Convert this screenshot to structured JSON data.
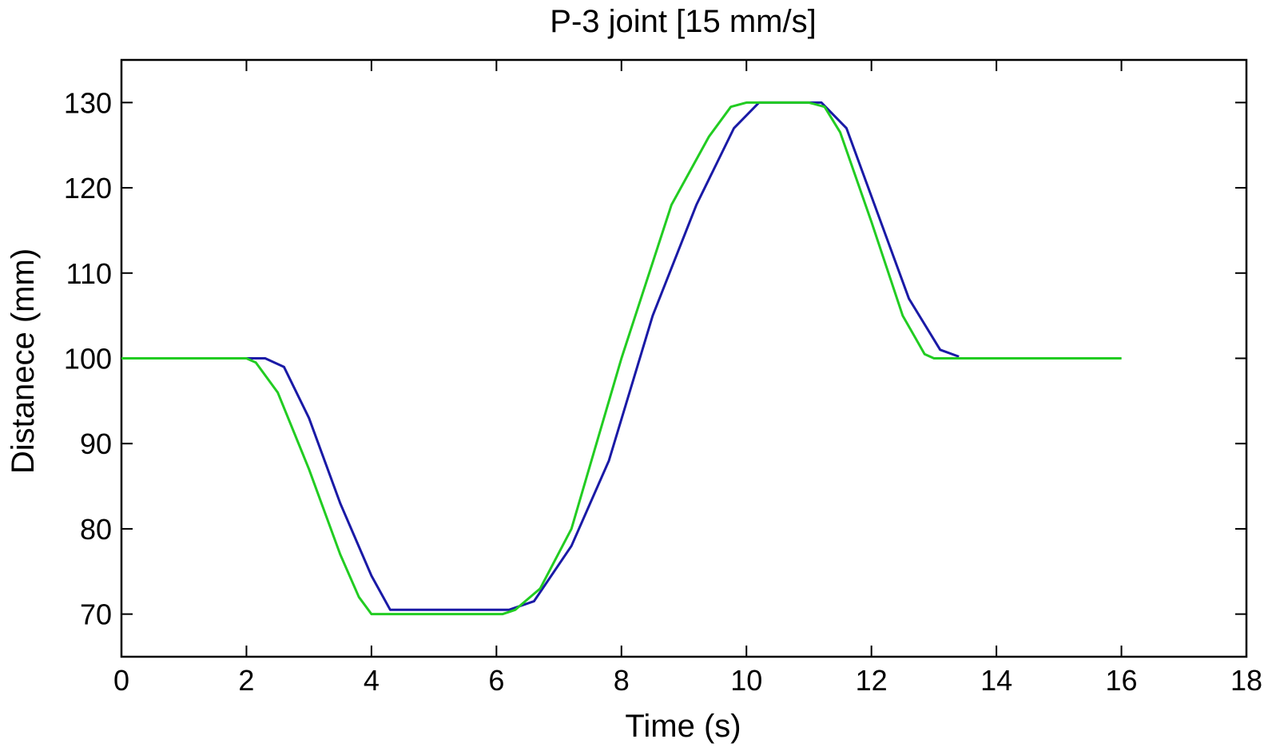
{
  "chart_data": {
    "type": "line",
    "title": "P-3 joint [15 mm/s]",
    "xlabel": "Time (s)",
    "ylabel": "Distanece (mm)",
    "xlim": [
      0,
      18
    ],
    "ylim": [
      65,
      135
    ],
    "x_ticks": [
      0,
      2,
      4,
      6,
      8,
      10,
      12,
      14,
      16,
      18
    ],
    "y_ticks": [
      70,
      80,
      90,
      100,
      110,
      120,
      130
    ],
    "grid": false,
    "series": [
      {
        "color": "#1a1aa6",
        "x": [
          0,
          2.0,
          2.3,
          2.6,
          3.0,
          3.5,
          4.0,
          4.3,
          6.2,
          6.6,
          7.2,
          7.8,
          8.5,
          9.2,
          9.8,
          10.2,
          11.2,
          11.6,
          12.1,
          12.6,
          13.1,
          13.4
        ],
        "y": [
          100,
          100,
          100,
          99,
          93,
          83,
          74.5,
          70.5,
          70.5,
          71.5,
          78,
          88,
          105,
          118,
          127,
          130,
          130,
          127,
          117,
          107,
          101,
          100.2
        ]
      },
      {
        "color": "#222222",
        "x": [
          0,
          2.0,
          2.15,
          2.5,
          3.0,
          3.5,
          3.8,
          4.0,
          6.1,
          6.3,
          6.7,
          7.2,
          8.0,
          8.8,
          9.4,
          9.75,
          10.0,
          11.0,
          11.25,
          11.5,
          12.0,
          12.5,
          12.85,
          13.0,
          16.0
        ],
        "y": [
          100,
          100,
          99.5,
          96,
          87,
          77,
          72,
          70,
          70,
          70.5,
          73,
          80,
          100,
          118,
          126,
          129.5,
          130,
          130,
          129.5,
          126.5,
          116,
          105,
          100.5,
          100,
          100
        ]
      },
      {
        "color": "#22cc22",
        "x": [
          0,
          2.0,
          2.15,
          2.5,
          3.0,
          3.5,
          3.8,
          4.0,
          6.1,
          6.3,
          6.7,
          7.2,
          8.0,
          8.8,
          9.4,
          9.75,
          10.0,
          11.0,
          11.25,
          11.5,
          12.0,
          12.5,
          12.85,
          13.0,
          16.0
        ],
        "y": [
          100,
          100,
          99.5,
          96,
          87,
          77,
          72,
          70,
          70,
          70.5,
          73,
          80,
          100,
          118,
          126,
          129.5,
          130,
          130,
          129.5,
          126.5,
          116,
          105,
          100.5,
          100,
          100
        ]
      }
    ]
  }
}
